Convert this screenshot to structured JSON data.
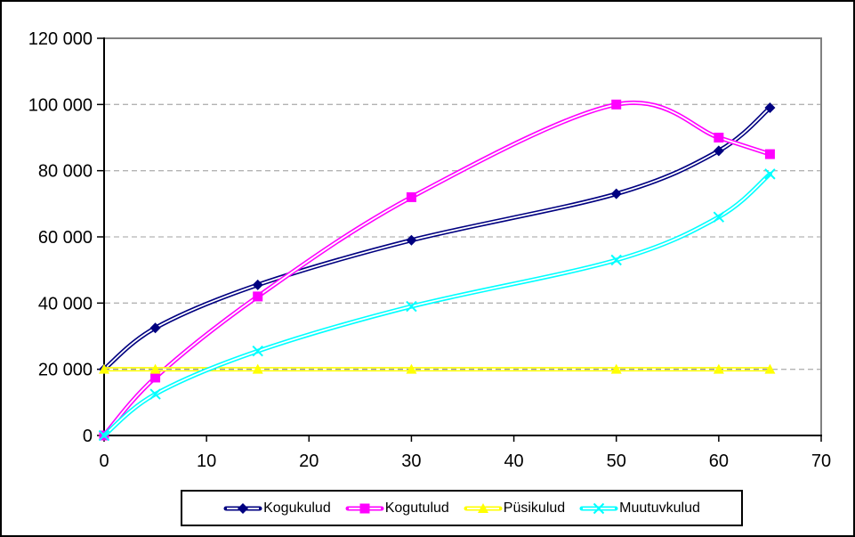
{
  "chart_data": {
    "type": "line",
    "title": "",
    "xlabel": "",
    "ylabel": "",
    "x": [
      0,
      5,
      15,
      30,
      50,
      60,
      65
    ],
    "series": [
      {
        "name": "Kogukulud",
        "color": "#000080",
        "marker": "diamond",
        "values": [
          20000,
          32500,
          45500,
          59000,
          73000,
          86000,
          99000
        ]
      },
      {
        "name": "Kogutulud",
        "color": "#FF00FF",
        "marker": "square",
        "values": [
          0,
          17500,
          42000,
          72000,
          100000,
          90000,
          85000
        ]
      },
      {
        "name": "Püsikulud",
        "color": "#FFFF00",
        "marker": "triangle",
        "values": [
          20000,
          20000,
          20000,
          20000,
          20000,
          20000,
          20000
        ],
        "grid_overlay": true
      },
      {
        "name": "Muutuvkulud",
        "color": "#00FFFF",
        "marker": "x",
        "values": [
          0,
          12500,
          25500,
          39000,
          53000,
          66000,
          79000
        ]
      }
    ],
    "xlim": [
      0,
      70
    ],
    "ylim": [
      0,
      120000
    ],
    "x_tick_values": [
      0,
      10,
      20,
      30,
      40,
      50,
      60,
      70
    ],
    "x_tick_labels": [
      "0",
      "10",
      "20",
      "30",
      "40",
      "50",
      "60",
      "70"
    ],
    "y_tick_values": [
      0,
      20000,
      40000,
      60000,
      80000,
      100000,
      120000
    ],
    "y_tick_labels": [
      "0",
      "20 000",
      "40 000",
      "60 000",
      "80 000",
      "100 000",
      "120 000"
    ],
    "grid": "horizontal dashed",
    "line_style": "smooth thick line with white core (outlined)",
    "legend_position": "bottom"
  },
  "ui": {
    "background": "#ffffff",
    "outer_border": "#000000",
    "axis_color": "#000000",
    "frame_color": "#808080",
    "grid_color": "#b3b3b3",
    "grid_overlay_color": "#808080",
    "text_color": "#000000",
    "legend_border": "#000000"
  }
}
